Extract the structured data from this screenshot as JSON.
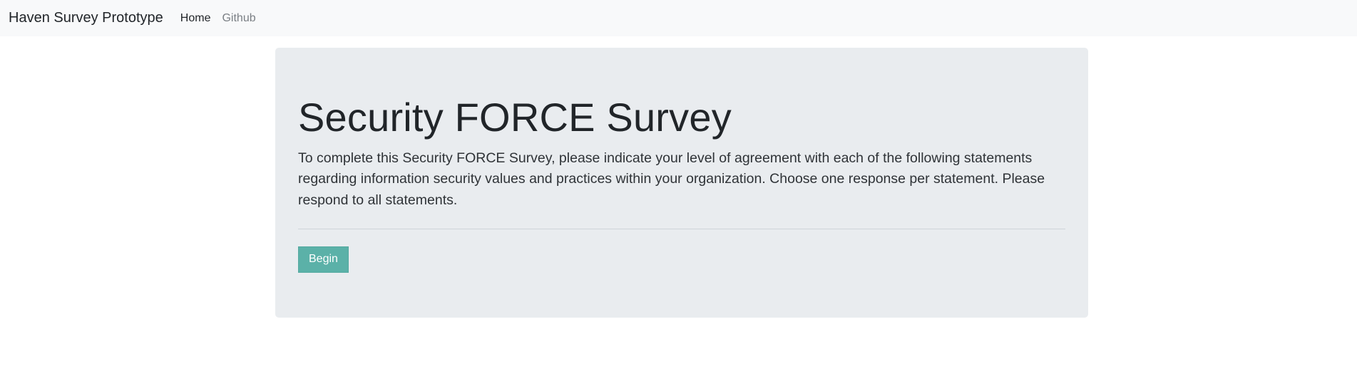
{
  "navbar": {
    "brand": "Haven Survey Prototype",
    "links": [
      {
        "label": "Home"
      },
      {
        "label": "Github"
      }
    ]
  },
  "jumbotron": {
    "title": "Security FORCE Survey",
    "description": "To complete this Security FORCE Survey, please indicate your level of agreement with each of the following statements regarding information security values and practices within your organization. Choose one response per statement. Please respond to all statements.",
    "button_label": "Begin"
  },
  "colors": {
    "navbar_bg": "#f8f9fa",
    "jumbotron_bg": "#e9ecef",
    "button_bg": "#5bb1a8"
  }
}
